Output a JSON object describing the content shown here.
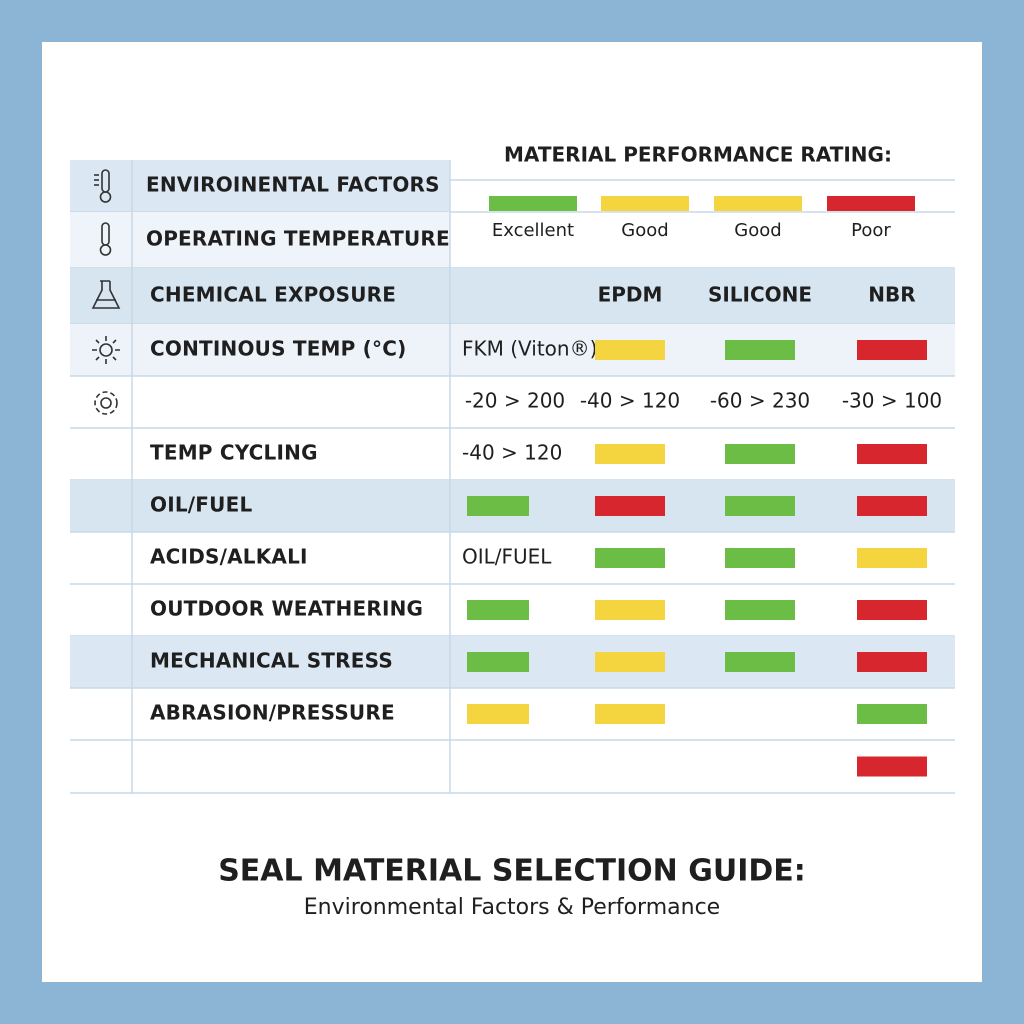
{
  "header": {
    "rating_title": "MATERIAL PERFORMANCE RATING:"
  },
  "legend": [
    {
      "name": "Excellent",
      "color": "#6cbd45"
    },
    {
      "name": "Good",
      "color": "#f4d43f"
    },
    {
      "name": "Good",
      "color": "#f4d43f"
    },
    {
      "name": "Poor",
      "color": "#d7262e"
    }
  ],
  "table": {
    "rows": [
      {
        "label": "ENVIROINENTAL FACTORS",
        "cells": [
          null,
          null,
          null,
          null
        ]
      },
      {
        "label": "OPERATING TEMPERATURE",
        "cells": [
          null,
          null,
          null,
          null
        ]
      },
      {
        "label": "CHEMICAL EXPOSURE",
        "cells": [
          null,
          "EPDM",
          "SILICONE",
          "NBR"
        ]
      },
      {
        "label": "CONTINOUS TEMP (°C)",
        "cells": [
          "FKM (Viton®)",
          {
            "color": "#f4d43f"
          },
          {
            "color": "#6cbd45"
          },
          {
            "color": "#d7262e"
          }
        ]
      },
      {
        "label": null,
        "cells": [
          "-20 > 200",
          "-40 > 120",
          "-60 > 230",
          "-30 > 100"
        ]
      },
      {
        "label": "TEMP CYCLING",
        "cells": [
          "-40 > 120",
          {
            "color": "#f4d43f"
          },
          {
            "color": "#6cbd45"
          },
          {
            "color": "#d7262e"
          }
        ]
      },
      {
        "label": "OIL/FUEL",
        "cells": [
          {
            "color": "#6cbd45"
          },
          {
            "color": "#d7262e"
          },
          {
            "color": "#6cbd45"
          },
          {
            "color": "#d7262e"
          }
        ]
      },
      {
        "label": "ACIDS/ALKALI",
        "cells": [
          "OIL/FUEL",
          {
            "color": "#6cbd45"
          },
          {
            "color": "#6cbd45"
          },
          {
            "color": "#f4d43f"
          }
        ]
      },
      {
        "label": "OUTDOOR WEATHERING",
        "cells": [
          {
            "color": "#6cbd45"
          },
          {
            "color": "#f4d43f"
          },
          {
            "color": "#6cbd45"
          },
          {
            "color": "#d7262e"
          }
        ]
      },
      {
        "label": "MECHANICAL STRESS",
        "cells": [
          {
            "color": "#6cbd45"
          },
          {
            "color": "#f4d43f"
          },
          {
            "color": "#6cbd45"
          },
          {
            "color": "#d7262e"
          }
        ]
      },
      {
        "label": "ABRASION/PRESSURE",
        "cells": [
          {
            "color": "#f4d43f"
          },
          {
            "color": "#f4d43f"
          },
          null,
          {
            "color": "#6cbd45"
          }
        ]
      },
      {
        "label": null,
        "cells": [
          null,
          null,
          null,
          {
            "color": "#d7262e"
          }
        ]
      }
    ]
  },
  "footer": {
    "title": "SEAL MATERIAL SELECTION GUIDE:",
    "subtitle": "Environmental Factors & Performance"
  }
}
